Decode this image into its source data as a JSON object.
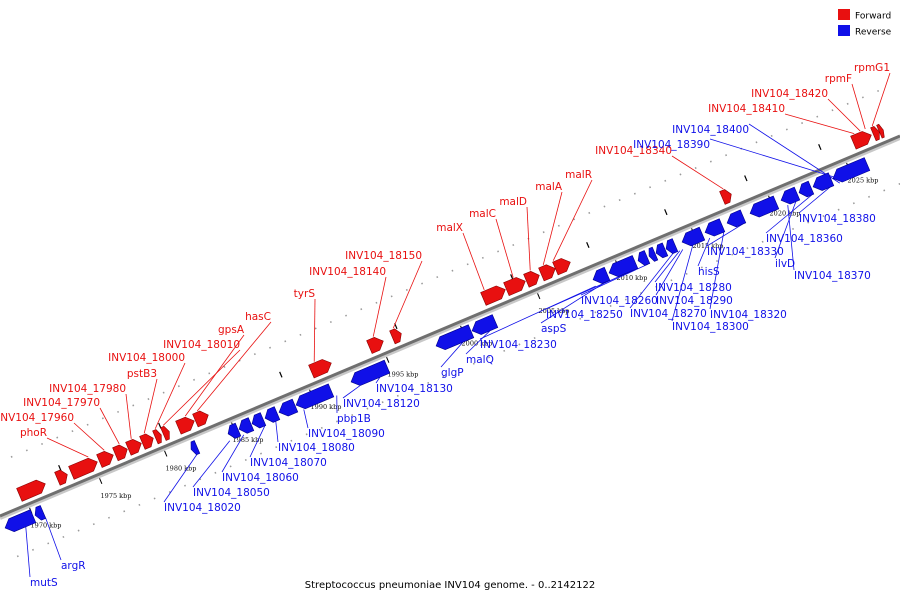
{
  "legend": {
    "forward": {
      "label": "Forward",
      "color": "#e81010"
    },
    "reverse": {
      "label": "Reverse",
      "color": "#1010e8"
    }
  },
  "caption": "Streptococcus pneumoniae INV104 genome. - 0..2142122",
  "scale_ticks": [
    {
      "label": "1970 kbp"
    },
    {
      "label": "1975 kbp"
    },
    {
      "label": "1980 kbp"
    },
    {
      "label": "1985 kbp"
    },
    {
      "label": "1990 kbp"
    },
    {
      "label": "1995 kbp"
    },
    {
      "label": "2000 kbp"
    },
    {
      "label": "2005 kbp"
    },
    {
      "label": "2010 kbp"
    },
    {
      "label": "2015 kbp"
    },
    {
      "label": "2020 kbp"
    },
    {
      "label": "2025 kbp"
    }
  ],
  "forward_labels": [
    {
      "text": "rpmG1"
    },
    {
      "text": "rpmF"
    },
    {
      "text": "INV104_18420"
    },
    {
      "text": "INV104_18410"
    },
    {
      "text": "INV104_18340"
    },
    {
      "text": "malR"
    },
    {
      "text": "malA"
    },
    {
      "text": "malD"
    },
    {
      "text": "malC"
    },
    {
      "text": "malX"
    },
    {
      "text": "INV104_18150"
    },
    {
      "text": "INV104_18140"
    },
    {
      "text": "tyrS"
    },
    {
      "text": "hasC"
    },
    {
      "text": "gpsA"
    },
    {
      "text": "INV104_18010"
    },
    {
      "text": "INV104_18000"
    },
    {
      "text": "pstB3"
    },
    {
      "text": "INV104_17980"
    },
    {
      "text": "INV104_17970"
    },
    {
      "text": "INV104_17960"
    },
    {
      "text": "phoR"
    }
  ],
  "reverse_labels": [
    {
      "text": "INV104_18400"
    },
    {
      "text": "INV104_18390"
    },
    {
      "text": "INV104_18380"
    },
    {
      "text": "INV104_18360"
    },
    {
      "text": "ilvD"
    },
    {
      "text": "INV104_18370"
    },
    {
      "text": "INV104_18330"
    },
    {
      "text": "hisS"
    },
    {
      "text": "INV104_18320"
    },
    {
      "text": "INV104_18280"
    },
    {
      "text": "INV104_18290"
    },
    {
      "text": "INV104_18270"
    },
    {
      "text": "INV104_18300"
    },
    {
      "text": "INV104_18260"
    },
    {
      "text": "INV104_18250"
    },
    {
      "text": "aspS"
    },
    {
      "text": "INV104_18230"
    },
    {
      "text": "malQ"
    },
    {
      "text": "glgP"
    },
    {
      "text": "INV104_18130"
    },
    {
      "text": "INV104_18120"
    },
    {
      "text": "pbp1B"
    },
    {
      "text": "INV104_18090"
    },
    {
      "text": "INV104_18080"
    },
    {
      "text": "INV104_18070"
    },
    {
      "text": "INV104_18060"
    },
    {
      "text": "INV104_18050"
    },
    {
      "text": "INV104_18020"
    },
    {
      "text": "argR"
    },
    {
      "text": "mutS"
    }
  ]
}
